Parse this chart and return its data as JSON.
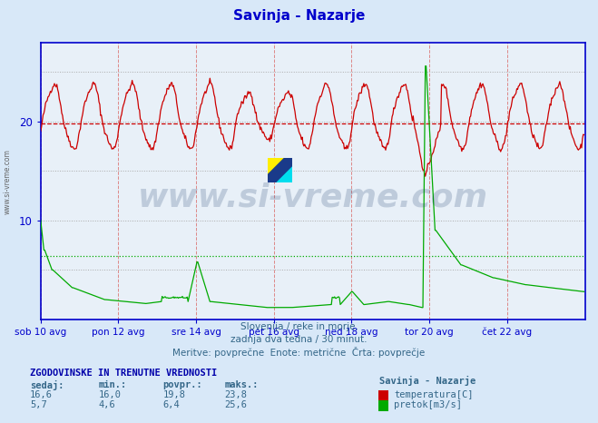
{
  "title": "Savinja - Nazarje",
  "title_color": "#0000cc",
  "background_color": "#d8e8f8",
  "plot_bg_color": "#e8f0f8",
  "x_ticks_labels": [
    "sob 10 avg",
    "pon 12 avg",
    "sre 14 avg",
    "pet 16 avg",
    "ned 18 avg",
    "tor 20 avg",
    "čet 22 avg"
  ],
  "x_ticks_pos": [
    0,
    96,
    192,
    288,
    384,
    480,
    576
  ],
  "ymin": 0,
  "ymax": 28,
  "xmin": 0,
  "xmax": 672,
  "hline_red_y": 19.8,
  "hline_green_y": 6.4,
  "footer_lines": [
    "Slovenija / reke in morje.",
    "zadnja dva tedna / 30 minut.",
    "Meritve: povprečne  Enote: metrične  Črta: povprečje"
  ],
  "table_header": "ZGODOVINSKE IN TRENUTNE VREDNOSTI",
  "table_cols": [
    "sedaj:",
    "min.:",
    "povpr.:",
    "maks.:"
  ],
  "table_row1": [
    "16,6",
    "16,0",
    "19,8",
    "23,8"
  ],
  "table_row2": [
    "5,7",
    "4,6",
    "6,4",
    "25,6"
  ],
  "legend_title": "Savinja - Nazarje",
  "legend_item1": "temperatura[C]",
  "legend_item2": "pretok[m3/s]",
  "temp_color": "#cc0000",
  "flow_color": "#00aa00",
  "axis_color": "#0000cc",
  "watermark_text": "www.si-vreme.com",
  "watermark_color": "#1a3a6a",
  "n_points": 672
}
